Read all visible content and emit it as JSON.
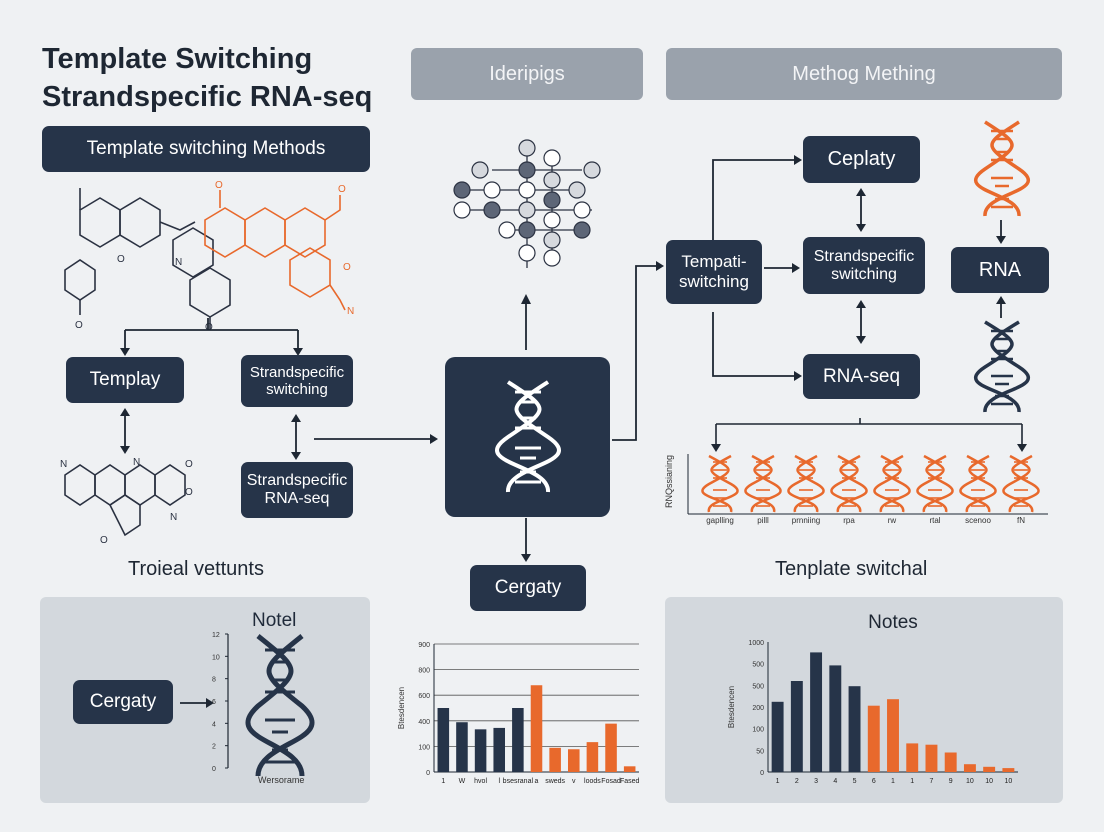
{
  "title_line1": "Template Switching",
  "title_line2": "Strandspecific RNA-seq",
  "left": {
    "methods_label": "Template switching Methods",
    "box_templay": "Templay",
    "box_strand_switch": "Strandspecific switching",
    "box_strand_rnaseq": "Strandspecific RNA-seq",
    "caption": "Troieal vettunts",
    "panel_title": "Notel",
    "panel_button": "Cergaty",
    "panel_xlabel": "Wersorame",
    "panel_ticks": [
      "12",
      "10",
      "8",
      "6",
      "4",
      "2",
      "0"
    ]
  },
  "center": {
    "header": "Ideripigs",
    "box_bottom": "Cergaty"
  },
  "right": {
    "header": "Methog Mething",
    "box_templ": "Tempati- switching",
    "box_ceplaty": "Ceplaty",
    "box_strand": "Strandspecific switching",
    "box_rna": "RNA",
    "box_rnaseq": "RNA-seq",
    "strip_ylabel": "RNQssianing",
    "strip_labels": [
      "gaplling",
      "pilll",
      "prnniing",
      "rpa",
      "rw",
      "rtal",
      "scenoo",
      "fN"
    ],
    "caption": "Tenplate switchal",
    "panel_title": "Notes"
  },
  "colors": {
    "navy": "#263449",
    "orange": "#e8692c",
    "panel": "#d3d8dd"
  },
  "chart_data": [
    {
      "type": "bar",
      "title": "",
      "ylabel": "Btesdencen",
      "ytick_labels": [
        "900",
        "800",
        "600",
        "400",
        "100",
        "0"
      ],
      "categories": [
        "1",
        "W",
        "hvol",
        "l",
        "bsesranal",
        "a",
        "sweds",
        "v",
        "loods",
        "Fosad",
        "Fased"
      ],
      "series": [
        {
          "values": [
            450,
            350,
            300,
            310,
            450,
            0,
            0,
            0,
            0,
            0,
            0
          ]
        },
        {
          "values": [
            0,
            0,
            0,
            0,
            0,
            610,
            170,
            160,
            210,
            340,
            40
          ]
        }
      ],
      "ylim": [
        0,
        900
      ]
    },
    {
      "type": "bar",
      "title": "Notes",
      "ylabel": "Btesdencen",
      "ytick_labels": [
        "1000",
        "500",
        "500",
        "200",
        "100",
        "50",
        "0"
      ],
      "categories": [
        "1",
        "2",
        "3",
        "4",
        "5",
        "6",
        "1",
        "1",
        "7",
        "9",
        "10",
        "10",
        "10"
      ],
      "series": [
        {
          "values": [
            540,
            700,
            920,
            820,
            660,
            0,
            0,
            0,
            0,
            0,
            0,
            0,
            0
          ]
        },
        {
          "values": [
            0,
            0,
            0,
            0,
            0,
            510,
            560,
            220,
            210,
            150,
            60,
            40,
            30
          ]
        }
      ],
      "ylim": [
        0,
        1000
      ]
    }
  ]
}
